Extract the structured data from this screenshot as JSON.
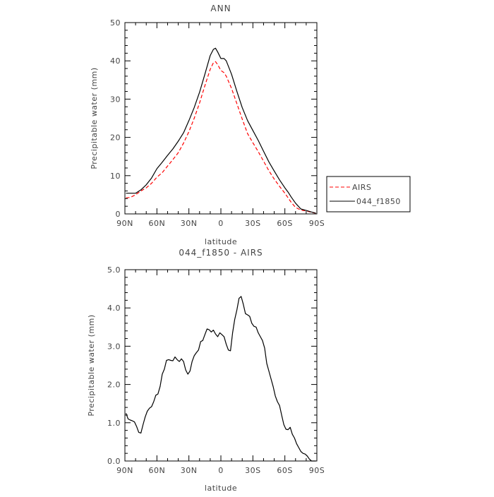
{
  "chart_data": [
    {
      "type": "line",
      "title": "ANN",
      "xlabel": "latitude",
      "ylabel": "Precipitable water (mm)",
      "xlim": [
        90,
        -90
      ],
      "ylim": [
        0,
        50
      ],
      "x_ticks": [
        90,
        60,
        30,
        0,
        -30,
        -60,
        -90
      ],
      "x_tick_labels": [
        "90N",
        "60N",
        "30N",
        "0",
        "30S",
        "60S",
        "90S"
      ],
      "y_ticks": [
        0,
        10,
        20,
        30,
        40,
        50
      ],
      "y_tick_labels": [
        "0",
        "10",
        "20",
        "30",
        "40",
        "50"
      ],
      "legend_position": "right",
      "series": [
        {
          "name": "AIRS",
          "color": "#ff0000",
          "dash": "dashed",
          "x": [
            89,
            85,
            80,
            75,
            70,
            65,
            60,
            55,
            50,
            45,
            40,
            35,
            30,
            25,
            20,
            15,
            10,
            7,
            5,
            3,
            0,
            -3,
            -5,
            -10,
            -15,
            -20,
            -25,
            -30,
            -35,
            -40,
            -45,
            -50,
            -55,
            -60,
            -63,
            -66,
            -70,
            -75,
            -80,
            -85,
            -89
          ],
          "y": [
            4.2,
            4.3,
            5.0,
            6.0,
            6.8,
            8.0,
            9.6,
            10.8,
            12.5,
            14.2,
            16.0,
            18.5,
            21.5,
            25.0,
            29.0,
            33.5,
            37.8,
            39.5,
            39.8,
            39.0,
            37.5,
            36.9,
            36.0,
            32.8,
            28.8,
            24.8,
            21.0,
            18.6,
            16.3,
            13.8,
            11.3,
            9.1,
            7.2,
            5.4,
            4.2,
            3.0,
            1.7,
            1.0,
            0.8,
            0.4,
            0.2
          ]
        },
        {
          "name": "044_f1850",
          "color": "#000000",
          "dash": "solid",
          "x": [
            89,
            85,
            80,
            75,
            70,
            65,
            60,
            55,
            50,
            45,
            40,
            35,
            30,
            25,
            20,
            15,
            10,
            7,
            5,
            3,
            0,
            -3,
            -5,
            -10,
            -15,
            -20,
            -25,
            -30,
            -35,
            -40,
            -45,
            -50,
            -55,
            -60,
            -63,
            -66,
            -70,
            -75,
            -80,
            -85,
            -89
          ],
          "y": [
            5.4,
            5.4,
            5.4,
            6.3,
            7.6,
            9.4,
            11.8,
            13.5,
            15.3,
            17.0,
            19.0,
            21.2,
            24.4,
            27.8,
            31.8,
            36.5,
            41.4,
            43.0,
            43.3,
            42.3,
            40.6,
            40.6,
            40.0,
            36.5,
            32.0,
            27.8,
            24.4,
            21.8,
            19.2,
            16.4,
            13.6,
            11.2,
            8.9,
            6.8,
            5.7,
            4.4,
            2.8,
            1.3,
            0.9,
            0.5,
            0.2
          ]
        }
      ]
    },
    {
      "type": "line",
      "title": "044_f1850 - AIRS",
      "xlabel": "latitude",
      "ylabel": "Precipitable water (mm)",
      "xlim": [
        90,
        -90
      ],
      "ylim": [
        0,
        5
      ],
      "x_ticks": [
        90,
        60,
        30,
        0,
        -30,
        -60,
        -90
      ],
      "x_tick_labels": [
        "90N",
        "60N",
        "30N",
        "0",
        "30S",
        "60S",
        "90S"
      ],
      "y_ticks": [
        0,
        1,
        2,
        3,
        4,
        5
      ],
      "y_tick_labels": [
        "0.0",
        "1.0",
        "2.0",
        "3.0",
        "4.0",
        "5.0"
      ],
      "series": [
        {
          "color": "#000000",
          "dash": "solid",
          "x": [
            89,
            87,
            85,
            83,
            81,
            79,
            77,
            75,
            73,
            71,
            69,
            67,
            65,
            63,
            61,
            59,
            57,
            55,
            53,
            51,
            49,
            47,
            45,
            43,
            41,
            39,
            37,
            35,
            33,
            31,
            29,
            27,
            25,
            23,
            21,
            19,
            17,
            15,
            13,
            11,
            9,
            7,
            5,
            3,
            1,
            -1,
            -3,
            -5,
            -7,
            -9,
            -11,
            -13,
            -15,
            -17,
            -19,
            -21,
            -23,
            -25,
            -27,
            -29,
            -31,
            -33,
            -35,
            -37,
            -39,
            -41,
            -43,
            -45,
            -47,
            -49,
            -51,
            -53,
            -55,
            -57,
            -59,
            -61,
            -63,
            -65,
            -67,
            -69,
            -71,
            -73,
            -75,
            -77,
            -79,
            -81,
            -83,
            -85,
            -87,
            -89
          ],
          "y": [
            1.25,
            1.1,
            1.07,
            1.05,
            1.02,
            0.9,
            0.75,
            0.73,
            0.95,
            1.15,
            1.3,
            1.38,
            1.42,
            1.55,
            1.72,
            1.75,
            1.95,
            2.27,
            2.4,
            2.63,
            2.65,
            2.63,
            2.62,
            2.72,
            2.65,
            2.6,
            2.67,
            2.6,
            2.38,
            2.27,
            2.35,
            2.6,
            2.75,
            2.83,
            2.9,
            3.12,
            3.15,
            3.3,
            3.45,
            3.43,
            3.37,
            3.42,
            3.32,
            3.25,
            3.35,
            3.3,
            3.25,
            3.05,
            2.9,
            2.88,
            3.35,
            3.7,
            3.95,
            4.25,
            4.3,
            4.1,
            3.85,
            3.82,
            3.78,
            3.6,
            3.52,
            3.5,
            3.35,
            3.25,
            3.15,
            2.95,
            2.55,
            2.35,
            2.15,
            1.95,
            1.7,
            1.55,
            1.45,
            1.2,
            0.95,
            0.83,
            0.82,
            0.88,
            0.7,
            0.6,
            0.45,
            0.35,
            0.25,
            0.2,
            0.18,
            0.13,
            0.05,
            0.0,
            0.0,
            0.0
          ]
        }
      ]
    }
  ]
}
